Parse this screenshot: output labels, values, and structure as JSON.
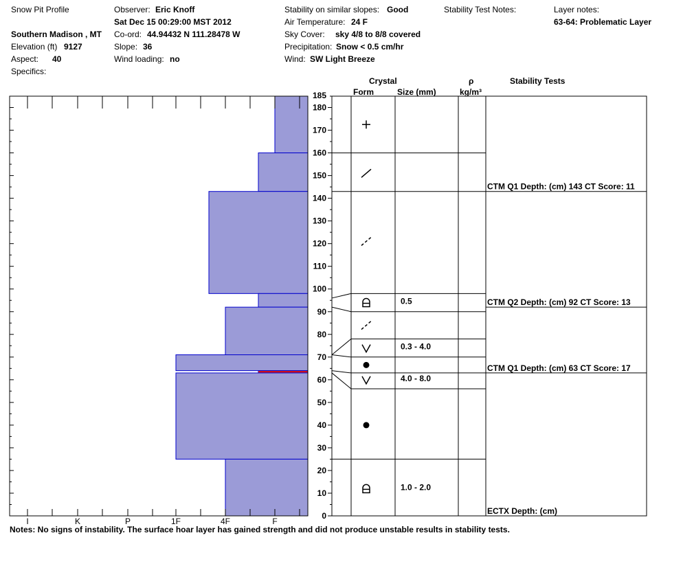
{
  "header": {
    "title": "Snow Pit Profile",
    "location": "Southern Madison , MT",
    "elevation_label": "Elevation (ft)",
    "elevation_value": "9127",
    "aspect_label": "Aspect:",
    "aspect_value": "40",
    "specifics_label": "Specifics:",
    "observer_label": "Observer:",
    "observer_value": "Eric Knoff",
    "datetime": "Sat Dec 15 00:29:00 MST 2012",
    "coord_label": "Co-ord:",
    "coord_value": "44.94432 N 111.28478 W",
    "slope_label": "Slope:",
    "slope_value": "36",
    "wind_loading_label": "Wind loading:",
    "wind_loading_value": "no",
    "stability_label": "Stability on similar slopes:",
    "stability_value": "Good",
    "air_temp_label": "Air Temperature:",
    "air_temp_value": "24 F",
    "sky_label": "Sky Cover:",
    "sky_value": "sky 4/8 to 8/8 covered",
    "precip_label": "Precipitation:",
    "precip_value": "Snow < 0.5 cm/hr",
    "wind_label": "Wind:",
    "wind_value": "SW Light Breeze",
    "stability_test_notes_label": "Stability Test Notes:",
    "layer_notes_label": "Layer notes:",
    "layer_notes_value": "63-64: Problematic Layer"
  },
  "columns": {
    "crystal": "Crystal",
    "form": "Form",
    "size": "Size (mm)",
    "rho": "ρ",
    "density_unit": "kg/m³",
    "stability_tests": "Stability Tests"
  },
  "chart_data": {
    "type": "bar",
    "description_axis": "height (cm)",
    "ylim": [
      0,
      185
    ],
    "yticks": [
      0,
      10,
      20,
      30,
      40,
      50,
      60,
      70,
      80,
      90,
      100,
      110,
      120,
      130,
      140,
      150,
      160,
      170,
      180,
      185
    ],
    "hardness_scale": [
      "I",
      "K",
      "P",
      "1F",
      "4F",
      "F"
    ],
    "hardness_profile": [
      {
        "bottom": 160,
        "top": 185,
        "hardness": "F+"
      },
      {
        "bottom": 143,
        "top": 160,
        "hardness": "F-"
      },
      {
        "bottom": 98,
        "top": 143,
        "hardness": "4F-"
      },
      {
        "bottom": 92,
        "top": 98,
        "hardness": "F-"
      },
      {
        "bottom": 71,
        "top": 92,
        "hardness": "4F"
      },
      {
        "bottom": 64,
        "top": 71,
        "hardness": "1F"
      },
      {
        "bottom": 63,
        "top": 64,
        "hardness": "F-",
        "problematic": true
      },
      {
        "bottom": 25,
        "top": 63,
        "hardness": "1F"
      },
      {
        "bottom": 0,
        "top": 25,
        "hardness": "4F"
      }
    ],
    "layers": [
      {
        "bottom": 160,
        "top": 185,
        "form": "plus-icon",
        "size": ""
      },
      {
        "bottom": 143,
        "top": 160,
        "form": "slash-icon",
        "size": ""
      },
      {
        "bottom": 98,
        "top": 143,
        "form": "dashed-slash-icon",
        "size": ""
      },
      {
        "bottom": 90,
        "top": 98,
        "form": "rounded-faceted-icon",
        "size": "0.5"
      },
      {
        "bottom": 78,
        "top": 90,
        "form": "dashed-slash-icon",
        "size": ""
      },
      {
        "bottom": 70,
        "top": 78,
        "form": "surface-hoar-icon",
        "size": "0.3 - 4.0"
      },
      {
        "bottom": 63,
        "top": 70,
        "form": "dot-icon",
        "size": ""
      },
      {
        "bottom": 56,
        "top": 63,
        "form": "surface-hoar-icon",
        "size": "4.0 - 8.0"
      },
      {
        "bottom": 25,
        "top": 56,
        "form": "dot-icon",
        "size": ""
      },
      {
        "bottom": 0,
        "top": 25,
        "form": "rounded-faceted-icon",
        "size": "1.0 - 2.0"
      }
    ],
    "tests": [
      {
        "depth": 143,
        "label": "CTM Q1 Depth: (cm) 143 CT Score: 11"
      },
      {
        "depth": 92,
        "label": "CTM Q2 Depth: (cm) 92 CT Score: 13"
      },
      {
        "depth": 63,
        "label": "CTM Q1 Depth: (cm) 63 CT Score: 17"
      },
      {
        "depth": 0,
        "label": "ECTX   Depth: (cm)"
      }
    ]
  },
  "notes": "Notes:  No signs of instability.  The surface hoar layer has gained strength and did not produce unstable results in stability tests.",
  "colors": {
    "profile_fill": "#9b9bd7",
    "profile_edge": "#0000cc",
    "problem_line": "#e00000"
  }
}
